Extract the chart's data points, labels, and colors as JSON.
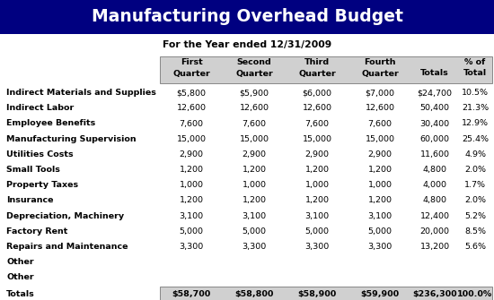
{
  "title": "Manufacturing Overhead Budget",
  "subtitle": "For the Year ended 12/31/2009",
  "title_bg": "#000080",
  "title_color": "#ffffff",
  "col_headers_line1": [
    "First",
    "Second",
    "Third",
    "Fourth",
    "",
    "% of"
  ],
  "col_headers_line2": [
    "Quarter",
    "Quarter",
    "Quarter",
    "Quarter",
    "Totals",
    "Total"
  ],
  "rows": [
    [
      "Indirect Materials and Supplies",
      "$5,800",
      "$5,900",
      "$6,000",
      "$7,000",
      "$24,700",
      "10.5%"
    ],
    [
      "Indirect Labor",
      "12,600",
      "12,600",
      "12,600",
      "12,600",
      "50,400",
      "21.3%"
    ],
    [
      "Employee Benefits",
      "7,600",
      "7,600",
      "7,600",
      "7,600",
      "30,400",
      "12.9%"
    ],
    [
      "Manufacturing Supervision",
      "15,000",
      "15,000",
      "15,000",
      "15,000",
      "60,000",
      "25.4%"
    ],
    [
      "Utilities Costs",
      "2,900",
      "2,900",
      "2,900",
      "2,900",
      "11,600",
      "4.9%"
    ],
    [
      "Small Tools",
      "1,200",
      "1,200",
      "1,200",
      "1,200",
      "4,800",
      "2.0%"
    ],
    [
      "Property Taxes",
      "1,000",
      "1,000",
      "1,000",
      "1,000",
      "4,000",
      "1.7%"
    ],
    [
      "Insurance",
      "1,200",
      "1,200",
      "1,200",
      "1,200",
      "4,800",
      "2.0%"
    ],
    [
      "Depreciation, Machinery",
      "3,100",
      "3,100",
      "3,100",
      "3,100",
      "12,400",
      "5.2%"
    ],
    [
      "Factory Rent",
      "5,000",
      "5,000",
      "5,000",
      "5,000",
      "20,000",
      "8.5%"
    ],
    [
      "Repairs and Maintenance",
      "3,300",
      "3,300",
      "3,300",
      "3,300",
      "13,200",
      "5.6%"
    ],
    [
      "Other",
      "",
      "",
      "",
      "",
      "",
      ""
    ],
    [
      "Other",
      "",
      "",
      "",
      "",
      "",
      ""
    ]
  ],
  "totals_row": [
    "Totals",
    "$58,700",
    "$58,800",
    "$58,900",
    "$59,900",
    "$236,300",
    "100.0%"
  ],
  "header_bg": "#d0d0d0",
  "header_border": "#888888",
  "totals_bg": "#d0d0d0",
  "body_bg": "#ffffff",
  "title_fontsize": 13.5,
  "subtitle_fontsize": 7.8,
  "data_fontsize": 6.8,
  "header_fontsize": 6.8
}
